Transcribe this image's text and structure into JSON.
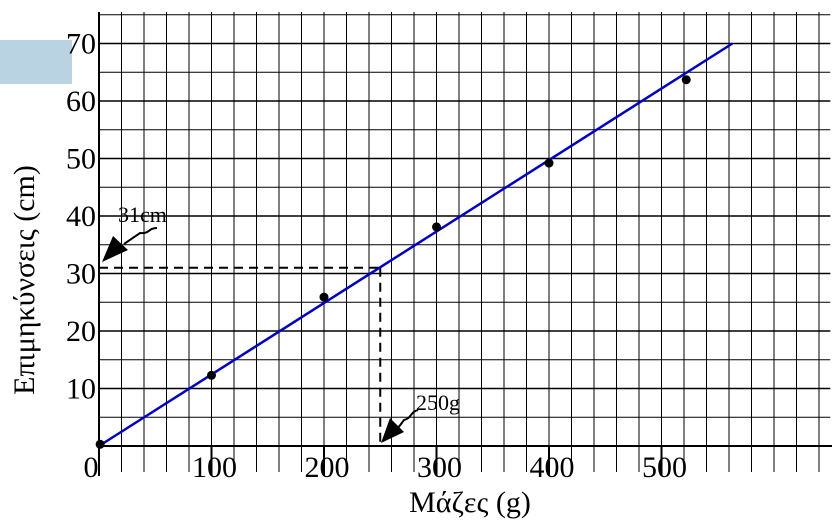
{
  "chart_data": {
    "type": "scatter",
    "xlabel": "Μάζες (g)",
    "ylabel": "Επιμηκύνσεις (cm)",
    "x": [
      1,
      100,
      200,
      300,
      400,
      522
    ],
    "values": [
      0.3,
      12.3,
      25.9,
      38.1,
      49.2,
      63.7
    ],
    "color": "#000000",
    "fit_line": {
      "x": [
        0,
        563
      ],
      "y": [
        0,
        70
      ],
      "color": "#0000cc"
    },
    "reading": {
      "x": 250,
      "y": 31
    },
    "annotations": [
      "31cm",
      "250g"
    ],
    "xlim": [
      0,
      650
    ],
    "ylim": [
      0,
      75.5
    ],
    "xticks": [
      0,
      100,
      200,
      300,
      400,
      500
    ],
    "yticks": [
      10,
      20,
      30,
      40,
      50,
      60,
      70
    ],
    "grid": true
  }
}
